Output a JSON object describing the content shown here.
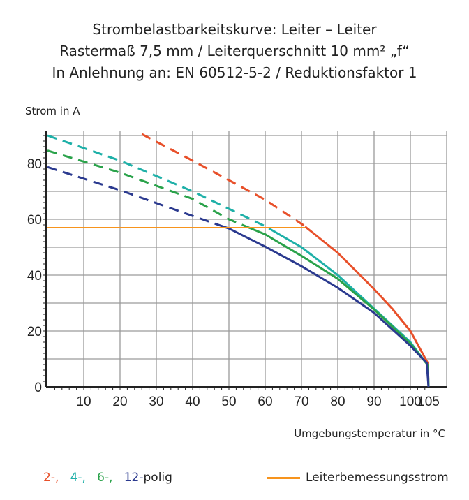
{
  "title_lines": [
    "Strombelastbarkeitskurve: Leiter – Leiter",
    "Rastermaß 7,5 mm / Leiterquerschnitt 10 mm² „f“",
    "In Anlehnung an: EN 60512-5-2 / Reduktionsfaktor 1"
  ],
  "chart_data": {
    "type": "line",
    "ylabel": "Strom in A",
    "xlabel": "Umgebungstemperatur in °C",
    "xlim": [
      0,
      105
    ],
    "ylim": [
      0,
      90
    ],
    "x_ticks": [
      10,
      20,
      30,
      40,
      50,
      60,
      70,
      80,
      90,
      100,
      105
    ],
    "y_ticks": [
      0,
      20,
      40,
      60,
      80
    ],
    "grid": true,
    "series": [
      {
        "name": "2-",
        "color": "#e8502a",
        "solid_from": 71,
        "points": [
          [
            26,
            90.5
          ],
          [
            40,
            81
          ],
          [
            60,
            67
          ],
          [
            70.4,
            58
          ],
          [
            80,
            48
          ],
          [
            90,
            35
          ],
          [
            95,
            28
          ],
          [
            100,
            20
          ],
          [
            104.8,
            8.5
          ],
          [
            105,
            0
          ]
        ]
      },
      {
        "name": "4-",
        "color": "#1fb0a8",
        "solid_from": 61,
        "points": [
          [
            0,
            90
          ],
          [
            20,
            81
          ],
          [
            40,
            70
          ],
          [
            60,
            57.5
          ],
          [
            70,
            50
          ],
          [
            80,
            40
          ],
          [
            90,
            28
          ],
          [
            100,
            16
          ],
          [
            104.8,
            7.8
          ],
          [
            105,
            0
          ]
        ]
      },
      {
        "name": "6-",
        "color": "#2aa24a",
        "solid_from": 56,
        "points": [
          [
            0,
            84.6
          ],
          [
            20,
            76.7
          ],
          [
            40,
            67.3
          ],
          [
            50,
            60
          ],
          [
            60,
            54.6
          ],
          [
            70,
            46.9
          ],
          [
            80,
            38.7
          ],
          [
            90,
            27.7
          ],
          [
            100,
            15.5
          ],
          [
            104.8,
            7.8
          ],
          [
            105,
            0
          ]
        ]
      },
      {
        "name": "12-",
        "color": "#2b3a8f",
        "solid_from": 47,
        "points": [
          [
            0,
            78.7
          ],
          [
            20,
            70.4
          ],
          [
            40,
            61.2
          ],
          [
            50,
            56.7
          ],
          [
            60,
            50.2
          ],
          [
            70,
            43.2
          ],
          [
            80,
            35.5
          ],
          [
            90,
            26.5
          ],
          [
            100,
            14.7
          ],
          [
            104.5,
            8.6
          ],
          [
            105,
            0
          ]
        ]
      }
    ],
    "reference_line": {
      "name": "Leiterbemessungsstrom",
      "value": 57,
      "x_range": [
        0,
        71
      ],
      "color": "#f7941d"
    },
    "legend": {
      "series_suffix": "polig",
      "placement": "bottom"
    }
  }
}
